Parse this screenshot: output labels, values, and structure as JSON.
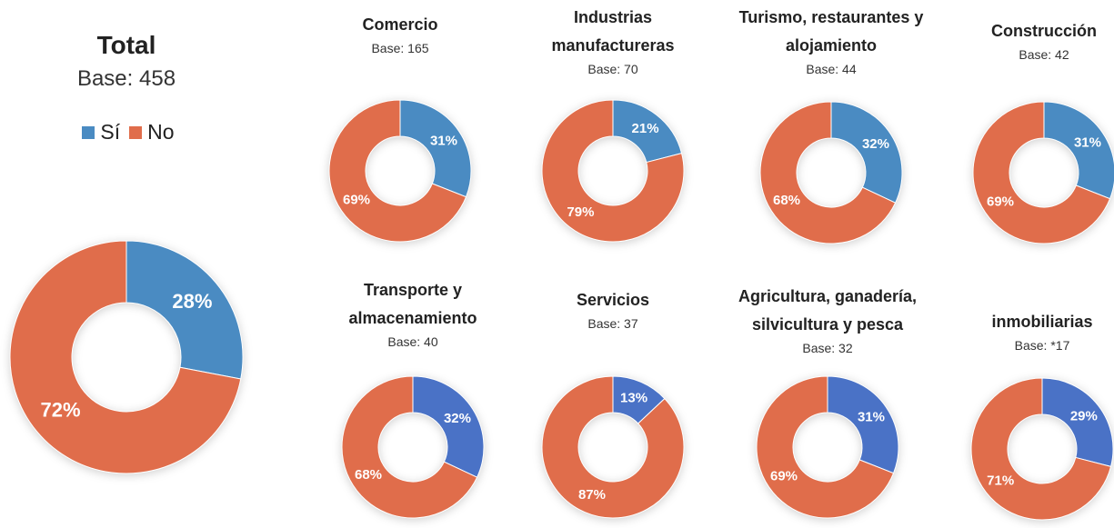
{
  "chart_data": [
    {
      "type": "donut",
      "title": "Total",
      "subtitle": "Base: 458",
      "categories": [
        "Sí",
        "No"
      ],
      "colors": [
        "#4a8bc2",
        "#e06d4b"
      ],
      "values": [
        28,
        72
      ],
      "value_labels": [
        "28%",
        "72%"
      ],
      "legend": true
    },
    {
      "type": "donut",
      "title": "Comercio",
      "subtitle": "Base: 165",
      "colors": [
        "#4a8bc2",
        "#e06d4b"
      ],
      "values": [
        31,
        69
      ],
      "value_labels": [
        "31%",
        "69%"
      ]
    },
    {
      "type": "donut",
      "title": "Industrias manufactureras",
      "subtitle": "Base: 70",
      "colors": [
        "#4a8bc2",
        "#e06d4b"
      ],
      "values": [
        21,
        79
      ],
      "value_labels": [
        "21%",
        "79%"
      ]
    },
    {
      "type": "donut",
      "title": "Turismo, restaurantes y alojamiento",
      "subtitle": "Base: 44",
      "colors": [
        "#4a8bc2",
        "#e06d4b"
      ],
      "values": [
        32,
        68
      ],
      "value_labels": [
        "32%",
        "68%"
      ]
    },
    {
      "type": "donut",
      "title": "Construcción",
      "subtitle": "Base: 42",
      "colors": [
        "#4a8bc2",
        "#e06d4b"
      ],
      "values": [
        31,
        69
      ],
      "value_labels": [
        "31%",
        "69%"
      ]
    },
    {
      "type": "donut",
      "title": "Transporte y almacenamiento",
      "subtitle": "Base: 40",
      "colors": [
        "#4a72c6",
        "#e06d4b"
      ],
      "values": [
        32,
        68
      ],
      "value_labels": [
        "32%",
        "68%"
      ]
    },
    {
      "type": "donut",
      "title": "Servicios",
      "subtitle": "Base: 37",
      "colors": [
        "#4a72c6",
        "#e06d4b"
      ],
      "values": [
        13,
        87
      ],
      "value_labels": [
        "13%",
        "87%"
      ]
    },
    {
      "type": "donut",
      "title": "Agricultura, ganadería, silvicultura y pesca",
      "subtitle": "Base: 32",
      "colors": [
        "#4a72c6",
        "#e06d4b"
      ],
      "values": [
        31,
        69
      ],
      "value_labels": [
        "31%",
        "69%"
      ]
    },
    {
      "type": "donut",
      "title": "inmobiliarias",
      "subtitle": "Base: *17",
      "colors": [
        "#4a72c6",
        "#e06d4b"
      ],
      "values": [
        29,
        71
      ],
      "value_labels": [
        "29%",
        "71%"
      ]
    }
  ]
}
